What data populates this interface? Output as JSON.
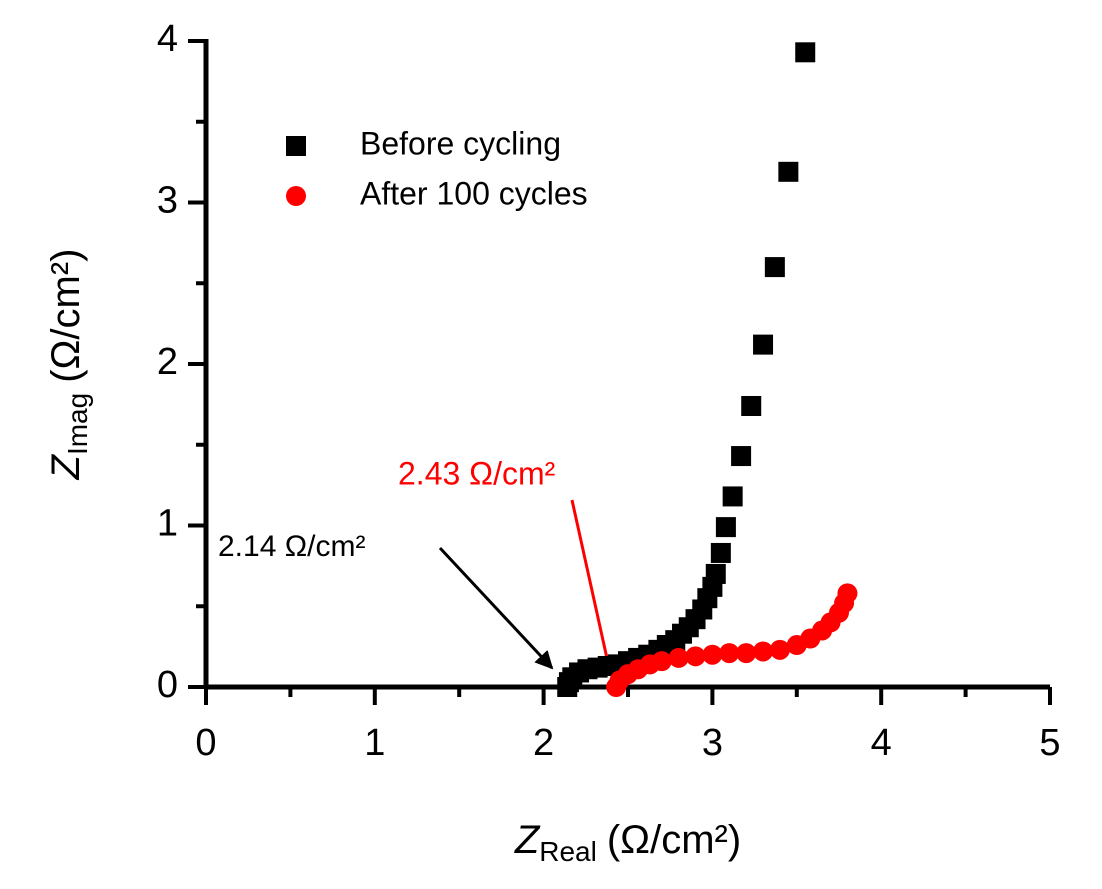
{
  "chart_data": {
    "type": "scatter",
    "x_label": {
      "symbol": "Z",
      "subscript": "Real",
      "unit": "(Ω/cm²)"
    },
    "y_label": {
      "symbol": "Z",
      "subscript": "Imag",
      "unit": "(Ω/cm²)"
    },
    "xlim": [
      0,
      5
    ],
    "ylim": [
      0,
      4
    ],
    "xticks": [
      0,
      1,
      2,
      3,
      4,
      5
    ],
    "yticks": [
      0,
      1,
      2,
      3,
      4
    ],
    "legend": "upper left",
    "series": [
      {
        "name": "Before cycling",
        "color": "#000000",
        "marker": "square",
        "x": [
          3.55,
          3.45,
          3.37,
          3.3,
          3.23,
          3.17,
          3.12,
          3.08,
          3.05,
          3.02,
          3.0,
          2.97,
          2.94,
          2.9,
          2.86,
          2.82,
          2.78,
          2.73,
          2.68,
          2.62,
          2.56,
          2.5,
          2.44,
          2.38,
          2.32,
          2.26,
          2.21,
          2.17,
          2.15,
          2.14
        ],
        "values": [
          3.93,
          3.19,
          2.6,
          2.12,
          1.74,
          1.43,
          1.18,
          0.99,
          0.83,
          0.7,
          0.62,
          0.55,
          0.48,
          0.42,
          0.37,
          0.33,
          0.29,
          0.26,
          0.23,
          0.2,
          0.18,
          0.16,
          0.14,
          0.13,
          0.12,
          0.11,
          0.09,
          0.06,
          0.03,
          0.0
        ]
      },
      {
        "name": "After 100 cycles",
        "color": "#ff0000",
        "marker": "circle",
        "x": [
          2.43,
          2.45,
          2.5,
          2.56,
          2.63,
          2.7,
          2.8,
          2.9,
          3.0,
          3.1,
          3.2,
          3.3,
          3.4,
          3.5,
          3.58,
          3.65,
          3.7,
          3.75,
          3.78,
          3.8
        ],
        "values": [
          0.0,
          0.04,
          0.08,
          0.11,
          0.14,
          0.16,
          0.18,
          0.19,
          0.2,
          0.21,
          0.21,
          0.22,
          0.23,
          0.26,
          0.3,
          0.35,
          0.4,
          0.46,
          0.52,
          0.58
        ]
      }
    ],
    "annotations": [
      {
        "text": "2.14 Ω/cm²",
        "color": "#000000"
      },
      {
        "text": "2.43 Ω/cm²",
        "color": "#ff0000"
      }
    ]
  }
}
